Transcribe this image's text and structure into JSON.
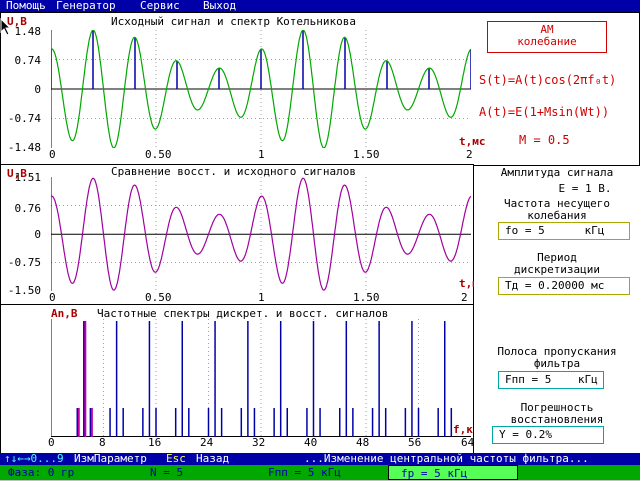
{
  "menu": {
    "items": [
      "Помощь",
      "Генератор",
      "Сервис",
      "Выход"
    ]
  },
  "panel1": {
    "title": "Исходный сигнал и спектр Котельникова",
    "ylabel": "U,B",
    "yticks": [
      "1.48",
      "0.74",
      "0",
      "-0.74",
      "-1.48"
    ],
    "xticks": [
      "0",
      "0.50",
      "1",
      "1.50",
      "2"
    ],
    "tlabel": "t,мс",
    "am_label": "АМ\nколебание",
    "formula1": "S(t)=A(t)cos(2πf₀t)",
    "formula2": "A(t)=E(1+Msin(Wt))",
    "m_value": "M = 0.5"
  },
  "panel2": {
    "title": "Сравнение восст. и исходного сигналов",
    "ylabel": "U,B",
    "yticks": [
      "1.51",
      "0.76",
      "0",
      "-0.75",
      "-1.50"
    ],
    "xticks": [
      "0",
      "0.50",
      "1",
      "1.50",
      "2"
    ],
    "tlabel": "t,мс"
  },
  "panel3": {
    "title": "Частотные спектры дискрет. и восст. сигналов",
    "ylabel": "An,B",
    "xticks": [
      "0",
      "8",
      "16",
      "24",
      "32",
      "40",
      "48",
      "56",
      "64"
    ],
    "flabel": "f,кГц"
  },
  "info": {
    "amp_title": "Амплитуда сигнала",
    "amp_value": "E = 1 В.",
    "carrier_title": "Частота несущего\nколебания",
    "carrier_value": "fo = 5      кГц",
    "period_title": "Период\nдискретизации",
    "period_value": "Тд = 0.20000 мс",
    "band_title": "Полоса пропускания\nфильтра",
    "band_value": "Fпп = 5    кГц",
    "error_title": "Погрешность\nвосстановления",
    "error_value": "Y = 0.2%"
  },
  "status": {
    "keys": "↑↓←→0...9",
    "param": "ИзмПараметр",
    "esc": "Esc",
    "back": "Назад",
    "message": "...Изменение центральной частоты фильтра..."
  },
  "bottom": {
    "phase": "Фаза: 0 гр",
    "n": "N = 5",
    "fpp": "Fпп = 5 кГц",
    "fr": "fр = 5 кГц"
  },
  "chart_data": [
    {
      "type": "line",
      "title": "Исходный сигнал и спектр Котельникова",
      "ylabel": "U,B",
      "xlabel": "t,мс",
      "xlim": [
        0,
        2
      ],
      "ylim": [
        -1.48,
        1.48
      ],
      "series": [
        {
          "function": "(1+0.5*sin(2*pi*1*t))*cos(2*pi*5*t)"
        },
        {
          "type": "stem",
          "x_step": 0.2
        }
      ]
    },
    {
      "type": "line",
      "title": "Сравнение восст. и исходного сигналов",
      "ylabel": "U,B",
      "xlabel": "t,мс",
      "xlim": [
        0,
        2
      ],
      "ylim": [
        -1.5,
        1.51
      ],
      "series": [
        {
          "function": "(1+0.5*sin(2*pi*1*t))*cos(2*pi*5*t)"
        }
      ]
    },
    {
      "type": "bar",
      "title": "Частотные спектры дискрет. и восст. сигналов",
      "ylabel": "An,B",
      "xlabel": "f,кГц",
      "xlim": [
        0,
        64
      ],
      "series": [
        {
          "x": [
            4,
            5,
            6,
            9,
            10,
            11,
            14,
            15,
            16,
            19,
            20,
            21,
            24,
            25,
            26,
            29,
            30,
            31,
            34,
            35,
            36,
            39,
            40,
            41,
            44,
            45,
            46,
            49,
            50,
            51,
            54,
            55,
            56,
            59,
            60,
            61
          ],
          "values": [
            0.25,
            1.0,
            0.25,
            0.25,
            1.0,
            0.25,
            0.25,
            1.0,
            0.25,
            0.25,
            1.0,
            0.25,
            0.25,
            1.0,
            0.25,
            0.25,
            1.0,
            0.25,
            0.25,
            1.0,
            0.25,
            0.25,
            1.0,
            0.25,
            0.25,
            1.0,
            0.25,
            0.25,
            1.0,
            0.25,
            0.25,
            1.0,
            0.25,
            0.25,
            1.0,
            0.25
          ]
        },
        {
          "x": [
            4,
            5,
            6
          ],
          "values": [
            0.25,
            1.0,
            0.25
          ]
        }
      ]
    }
  ]
}
